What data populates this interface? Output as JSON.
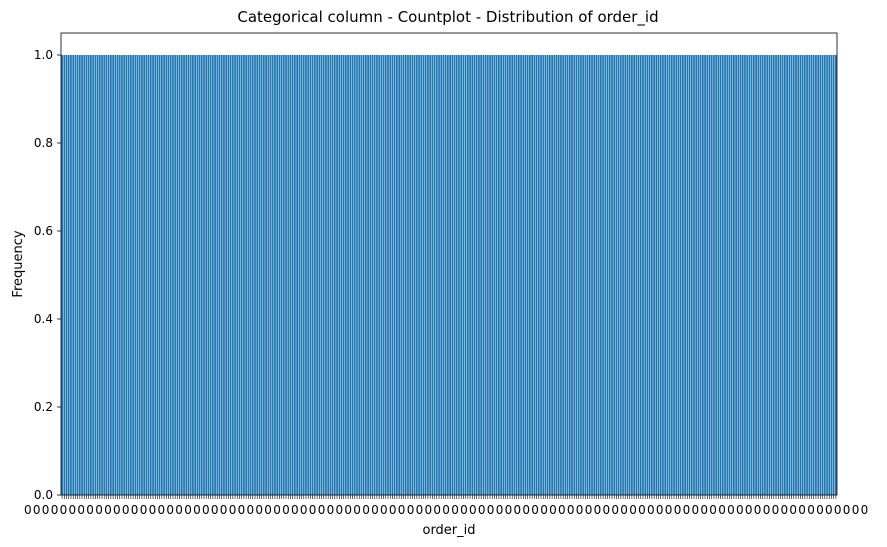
{
  "chart_data": {
    "type": "bar",
    "title": "Categorical column - Countplot - Distribution of order_id",
    "xlabel": "order_id",
    "ylabel": "Frequency",
    "ylim": [
      0,
      1.05
    ],
    "y_ticks": [
      "0.0",
      "0.2",
      "0.4",
      "0.6",
      "0.8",
      "1.0"
    ],
    "y_tick_values": [
      0,
      0.2,
      0.4,
      0.6,
      0.8,
      1.0
    ],
    "bar_value": 1.0,
    "bar_color": "#1f77b4",
    "grid": false,
    "legend": "none"
  }
}
